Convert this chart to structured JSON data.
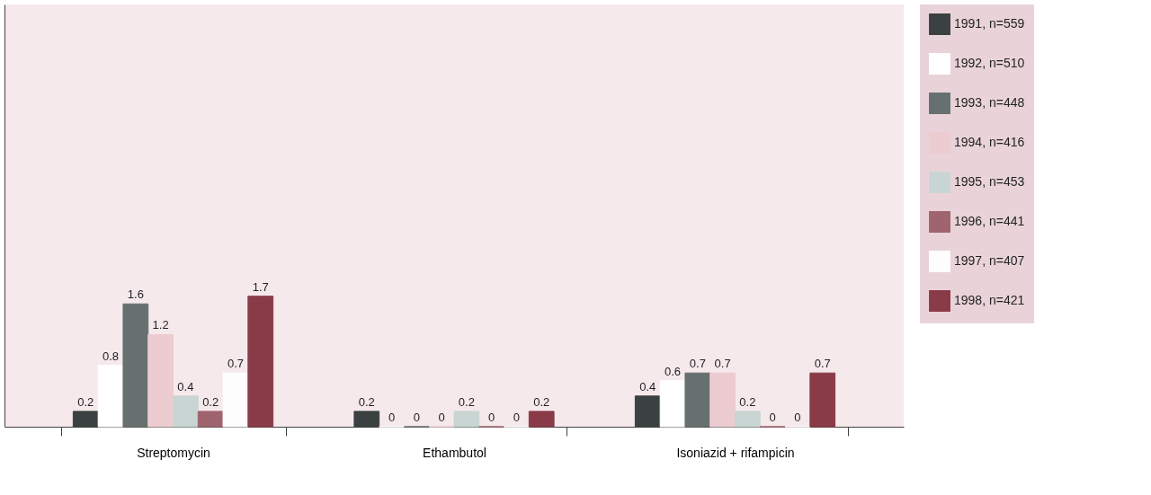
{
  "chart_data": {
    "type": "bar",
    "categories": [
      "Streptomycin",
      "Ethambutol",
      "Isoniazid + rifampicin"
    ],
    "series": [
      {
        "name": "1991, n=559",
        "color": "#3b4140",
        "values": [
          0.2,
          0.2,
          0.4
        ]
      },
      {
        "name": "1992, n=510",
        "color": "#ffffff",
        "values": [
          0.8,
          0,
          0.6
        ]
      },
      {
        "name": "1993, n=448",
        "color": "#66706e",
        "values": [
          1.6,
          0,
          0.7
        ]
      },
      {
        "name": "1994, n=416",
        "color": "#ecccd0",
        "values": [
          1.2,
          0,
          0.7
        ]
      },
      {
        "name": "1995, n=453",
        "color": "#c9d5d3",
        "values": [
          0.4,
          0.2,
          0.2
        ]
      },
      {
        "name": "1996, n=441",
        "color": "#a0646f",
        "values": [
          0.2,
          0,
          0
        ]
      },
      {
        "name": "1997, n=407",
        "color": "#fdfdfd",
        "values": [
          0.7,
          0,
          0
        ]
      },
      {
        "name": "1998, n=421",
        "color": "#8a3b48",
        "values": [
          1.7,
          0.2,
          0.7
        ]
      }
    ],
    "ylim": [
      0,
      5.5
    ],
    "tick_labels": "x",
    "data_labels": true,
    "legend": "right"
  }
}
